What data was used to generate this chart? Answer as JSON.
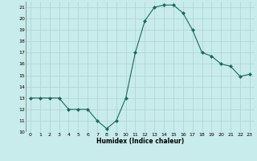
{
  "x": [
    0,
    1,
    2,
    3,
    4,
    5,
    6,
    7,
    8,
    9,
    10,
    11,
    12,
    13,
    14,
    15,
    16,
    17,
    18,
    19,
    20,
    21,
    22,
    23
  ],
  "y": [
    13,
    13,
    13,
    13,
    12,
    12,
    12,
    11,
    10.3,
    11,
    13,
    17,
    19.8,
    21,
    21.2,
    21.2,
    20.5,
    19,
    17,
    16.7,
    16,
    15.8,
    14.9,
    15.1
  ],
  "line_color": "#1a6b5a",
  "marker": "D",
  "marker_size": 2,
  "bg_color": "#c8ebeb",
  "grid_color": "#aed4d4",
  "xlabel": "Humidex (Indice chaleur)",
  "xlim": [
    -0.5,
    23.5
  ],
  "ylim": [
    10,
    21.5
  ],
  "yticks": [
    10,
    11,
    12,
    13,
    14,
    15,
    16,
    17,
    18,
    19,
    20,
    21
  ],
  "xticks": [
    0,
    1,
    2,
    3,
    4,
    5,
    6,
    7,
    8,
    9,
    10,
    11,
    12,
    13,
    14,
    15,
    16,
    17,
    18,
    19,
    20,
    21,
    22,
    23
  ]
}
